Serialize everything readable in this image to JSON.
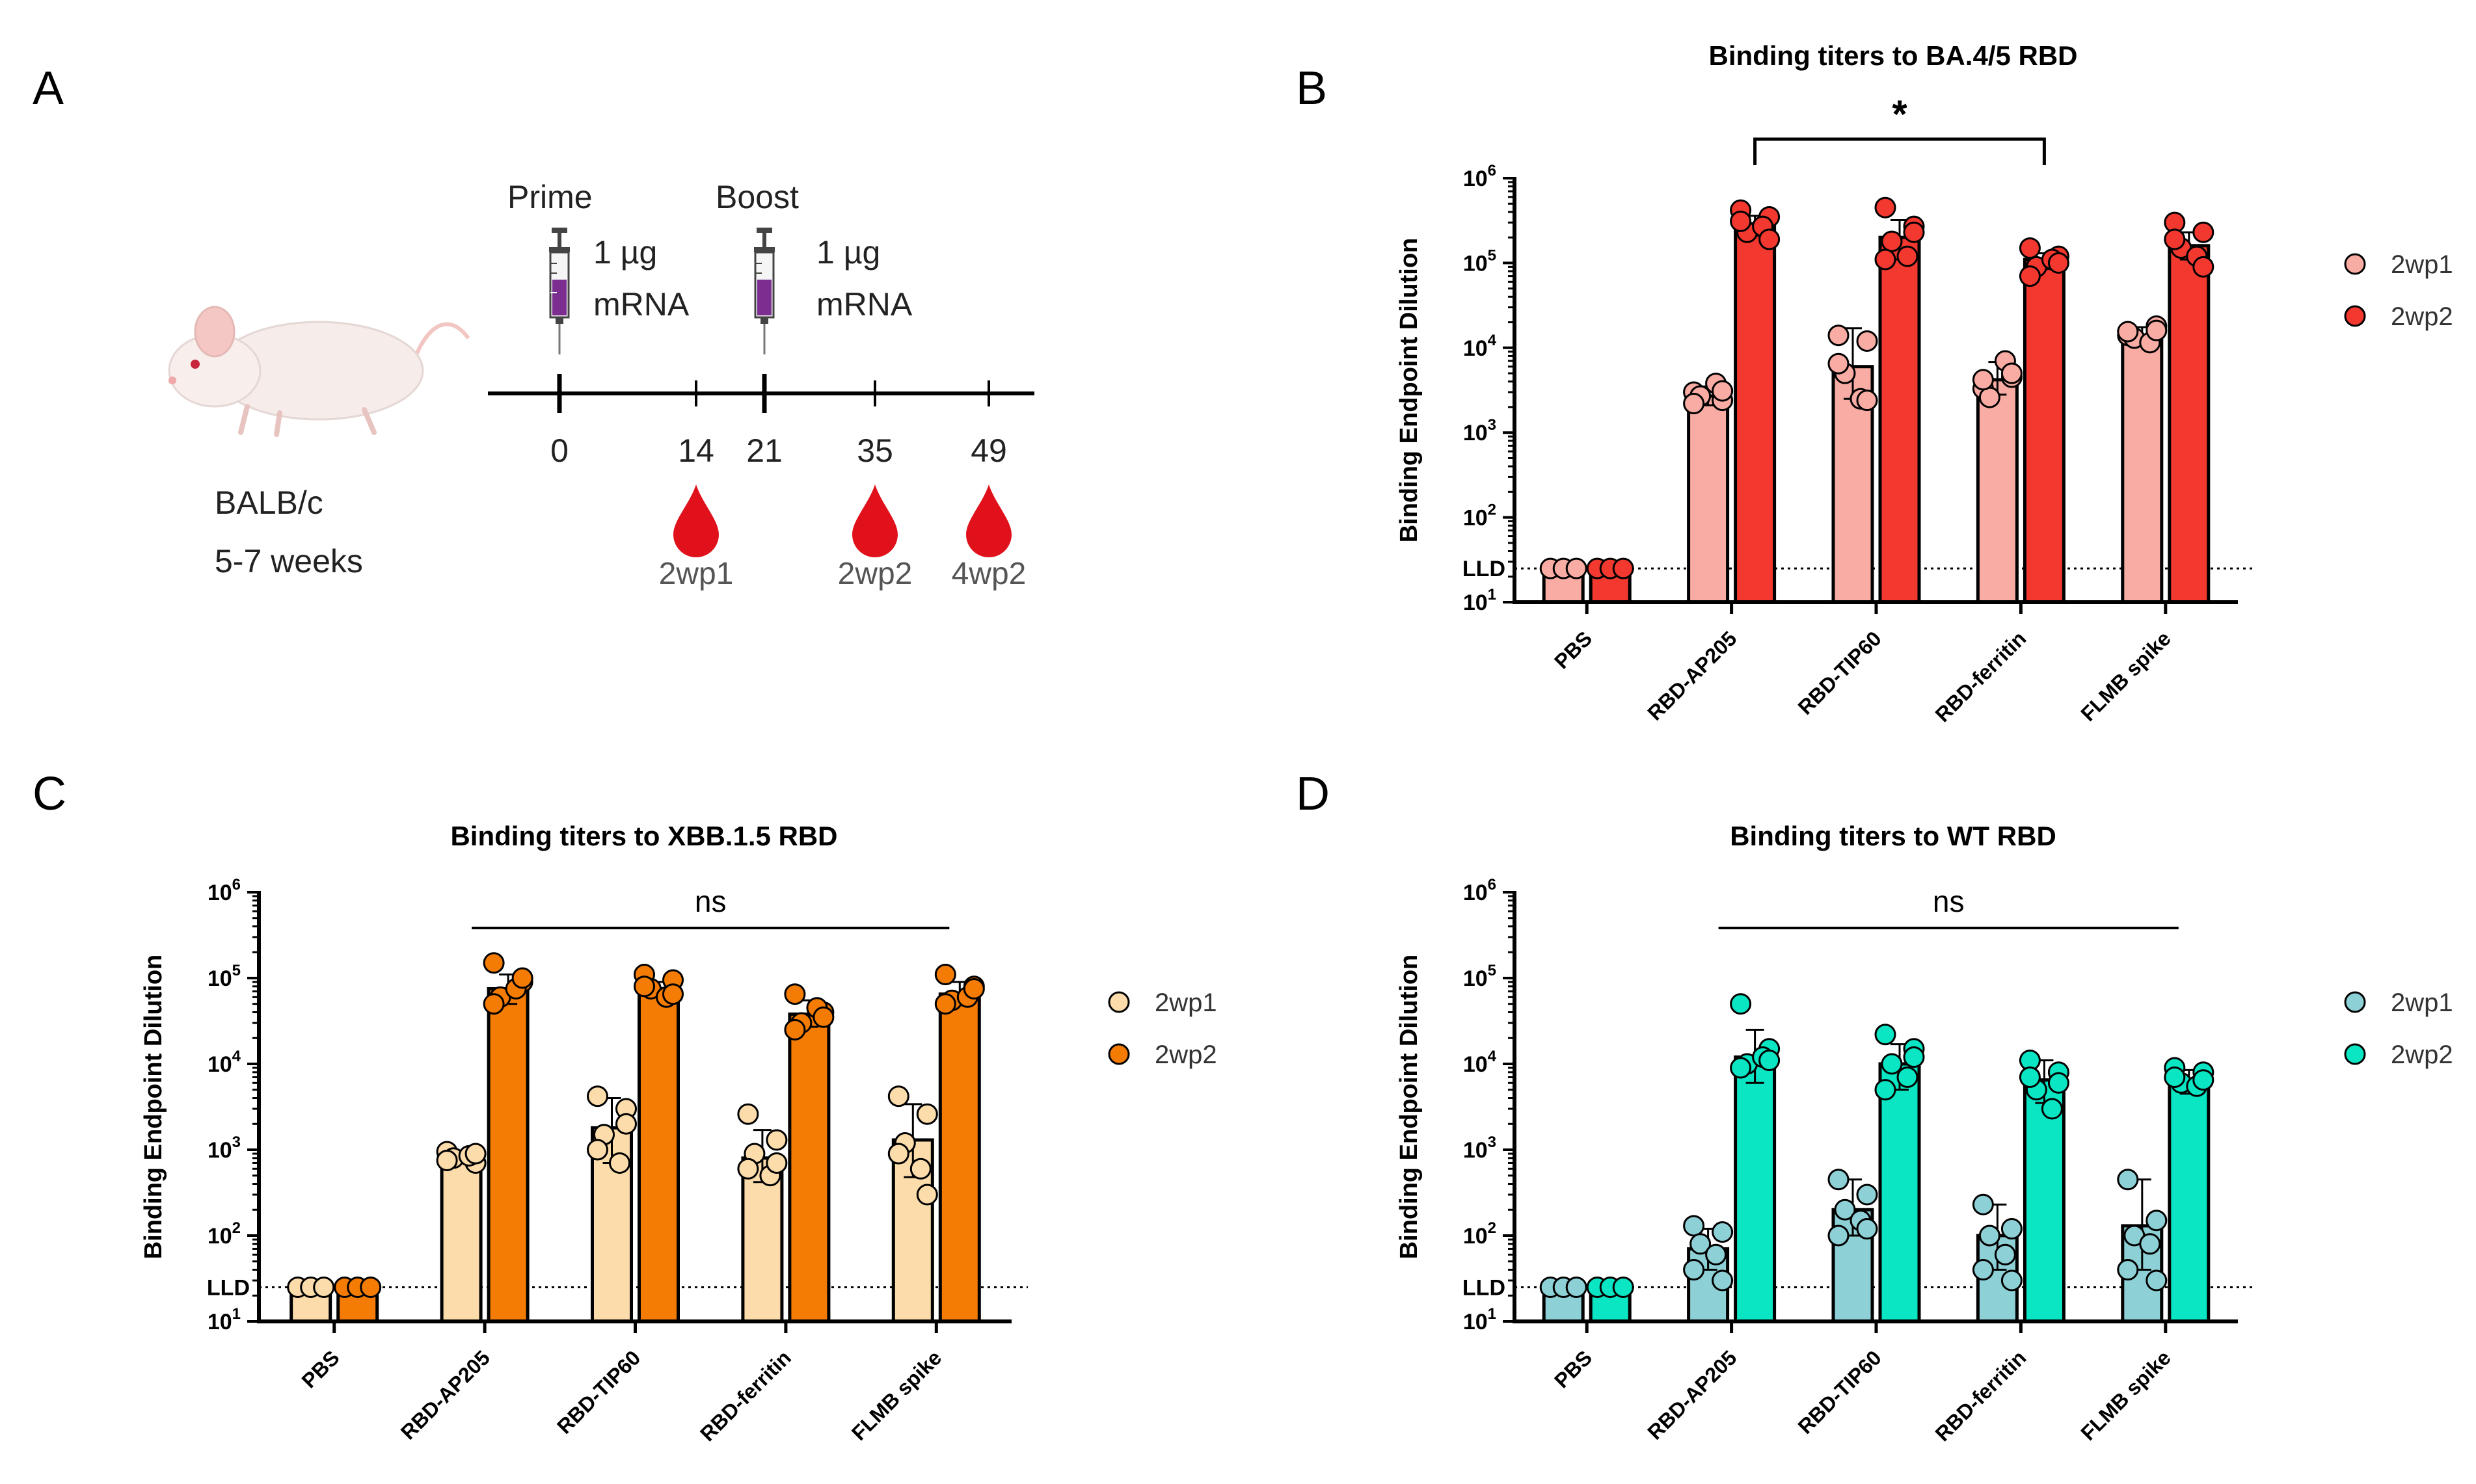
{
  "panel_a": {
    "letter": "A",
    "strain": "BALB/c",
    "age": "5-7 weeks",
    "prime_label": "Prime",
    "boost_label": "Boost",
    "prime_dose_1": "1 µg",
    "prime_dose_2": "mRNA",
    "boost_dose_1": "1 µg",
    "boost_dose_2": "mRNA",
    "days": [
      "0",
      "14",
      "21",
      "35",
      "49"
    ],
    "bleeds": [
      "2wp1",
      "2wp2",
      "4wp2"
    ]
  },
  "colors": {
    "B_2wp1": "#f9aca3",
    "B_2wp2": "#f2382f",
    "C_2wp1": "#fcdcab",
    "C_2wp2": "#f57c04",
    "D_2wp1": "#8dd0d6",
    "D_2wp2": "#0ae6c4",
    "blood": "#e0111b"
  },
  "chart_data": [
    {
      "panel": "B",
      "type": "bar",
      "scale": "log10",
      "title": "Binding titers to BA.4/5 RBD",
      "ylabel": "Binding Endpoint Dilution",
      "ylim": [
        10,
        1000000
      ],
      "lld_label": "LLD",
      "lld": 25,
      "categories": [
        "PBS",
        "RBD-AP205",
        "RBD-TIP60",
        "RBD-ferritin",
        "FLMB spike"
      ],
      "legend": [
        "2wp1",
        "2wp2"
      ],
      "series": [
        {
          "name": "2wp1",
          "values": [
            25,
            2700,
            6000,
            4200,
            14000
          ],
          "errors": [
            [
              25,
              25
            ],
            [
              2100,
              3500
            ],
            [
              2500,
              17000
            ],
            [
              2800,
              6800
            ],
            [
              11000,
              17500
            ]
          ],
          "points": [
            [
              25,
              25,
              25
            ],
            [
              3000,
              2400,
              2700,
              3800,
              2200,
              3100
            ],
            [
              14000,
              12000,
              5000,
              2500,
              6500,
              2400
            ],
            [
              3300,
              4500,
              2600,
              7000,
              4200,
              5000
            ],
            [
              14000,
              18000,
              13000,
              11500,
              15500,
              16000
            ]
          ]
        },
        {
          "name": "2wp2",
          "values": [
            25,
            290000,
            200000,
            110000,
            160000
          ],
          "errors": [
            [
              25,
              25
            ],
            [
              210000,
              360000
            ],
            [
              110000,
              320000
            ],
            [
              85000,
              130000
            ],
            [
              110000,
              230000
            ]
          ],
          "points": [
            [
              25,
              25,
              25
            ],
            [
              420000,
              350000,
              230000,
              270000,
              310000,
              190000
            ],
            [
              450000,
              270000,
              180000,
              120000,
              110000,
              230000
            ],
            [
              150000,
              120000,
              90000,
              110000,
              70000,
              100000
            ],
            [
              300000,
              230000,
              150000,
              120000,
              190000,
              90000
            ]
          ]
        }
      ],
      "significance": {
        "from": "RBD-AP205",
        "to": "RBD-ferritin",
        "label": "*"
      }
    },
    {
      "panel": "C",
      "type": "bar",
      "scale": "log10",
      "title": "Binding titers to XBB.1.5 RBD",
      "ylabel": "Binding Endpoint Dilution",
      "ylim": [
        10,
        1000000
      ],
      "lld_label": "LLD",
      "lld": 25,
      "categories": [
        "PBS",
        "RBD-AP205",
        "RBD-TIP60",
        "RBD-ferritin",
        "FLMB spike"
      ],
      "legend": [
        "2wp1",
        "2wp2"
      ],
      "series": [
        {
          "name": "2wp1",
          "values": [
            25,
            800,
            1800,
            800,
            1300
          ],
          "errors": [
            [
              25,
              25
            ],
            [
              700,
              950
            ],
            [
              700,
              4000
            ],
            [
              420,
              1700
            ],
            [
              480,
              3400
            ]
          ],
          "points": [
            [
              25,
              25,
              25
            ],
            [
              950,
              700,
              800,
              850,
              750,
              900
            ],
            [
              4200,
              3000,
              1500,
              700,
              1000,
              2000
            ],
            [
              2600,
              1300,
              900,
              500,
              600,
              700
            ],
            [
              4200,
              2600,
              1200,
              600,
              900,
              300
            ]
          ]
        },
        {
          "name": "2wp2",
          "values": [
            25,
            75000,
            75000,
            38000,
            65000
          ],
          "errors": [
            [
              25,
              25
            ],
            [
              50000,
              110000
            ],
            [
              60000,
              90000
            ],
            [
              27000,
              55000
            ],
            [
              50000,
              90000
            ]
          ],
          "points": [
            [
              25,
              25,
              25
            ],
            [
              150000,
              90000,
              60000,
              75000,
              50000,
              100000
            ],
            [
              110000,
              95000,
              75000,
              60000,
              80000,
              65000
            ],
            [
              65000,
              40000,
              30000,
              45000,
              25000,
              35000
            ],
            [
              110000,
              80000,
              55000,
              60000,
              50000,
              75000
            ]
          ]
        }
      ],
      "significance": {
        "from": "RBD-AP205",
        "to": "FLMB spike",
        "label": "ns"
      }
    },
    {
      "panel": "D",
      "type": "bar",
      "scale": "log10",
      "title": "Binding titers to WT RBD",
      "ylabel": "Binding Endpoint Dilution",
      "ylim": [
        10,
        1000000
      ],
      "lld_label": "LLD",
      "lld": 25,
      "categories": [
        "PBS",
        "RBD-AP205",
        "RBD-TIP60",
        "RBD-ferritin",
        "FLMB spike"
      ],
      "legend": [
        "2wp1",
        "2wp2"
      ],
      "series": [
        {
          "name": "2wp1",
          "values": [
            25,
            70,
            200,
            100,
            130
          ],
          "errors": [
            [
              25,
              25
            ],
            [
              40,
              120
            ],
            [
              100,
              450
            ],
            [
              40,
              230
            ],
            [
              40,
              450
            ]
          ],
          "points": [
            [
              25,
              25,
              25
            ],
            [
              130,
              110,
              80,
              60,
              40,
              30
            ],
            [
              450,
              300,
              200,
              150,
              100,
              120
            ],
            [
              230,
              120,
              100,
              60,
              40,
              30
            ],
            [
              450,
              150,
              100,
              80,
              40,
              30
            ]
          ]
        },
        {
          "name": "2wp2",
          "values": [
            25,
            12000,
            10000,
            6500,
            6500
          ],
          "errors": [
            [
              25,
              25
            ],
            [
              6000,
              25000
            ],
            [
              5000,
              17000
            ],
            [
              3500,
              11000
            ],
            [
              4500,
              8500
            ]
          ],
          "points": [
            [
              25,
              25,
              25
            ],
            [
              50000,
              15000,
              10000,
              12000,
              9000,
              11000
            ],
            [
              22000,
              15000,
              10000,
              7000,
              5000,
              12000
            ],
            [
              11000,
              8000,
              5000,
              3000,
              7000,
              6000
            ],
            [
              9000,
              8000,
              6000,
              5500,
              7000,
              6500
            ]
          ]
        }
      ],
      "significance": {
        "from": "RBD-AP205",
        "to": "FLMB spike",
        "label": "ns"
      }
    }
  ]
}
